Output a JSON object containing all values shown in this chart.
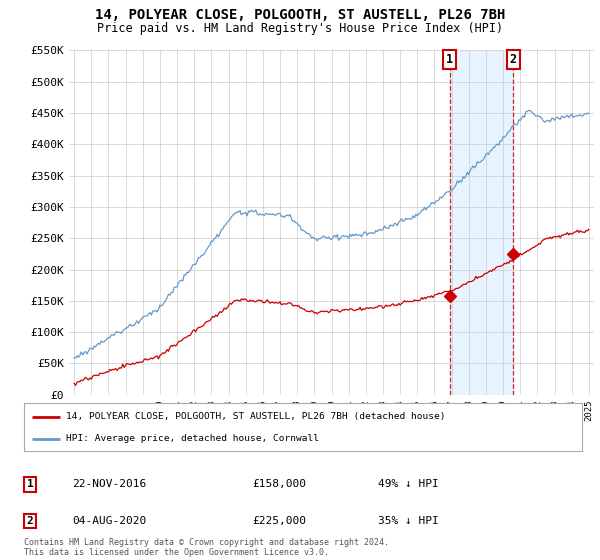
{
  "title": "14, POLYEAR CLOSE, POLGOOTH, ST AUSTELL, PL26 7BH",
  "subtitle": "Price paid vs. HM Land Registry's House Price Index (HPI)",
  "ylim": [
    0,
    550000
  ],
  "yticks": [
    0,
    50000,
    100000,
    150000,
    200000,
    250000,
    300000,
    350000,
    400000,
    450000,
    500000,
    550000
  ],
  "ytick_labels": [
    "£0",
    "£50K",
    "£100K",
    "£150K",
    "£200K",
    "£250K",
    "£300K",
    "£350K",
    "£400K",
    "£450K",
    "£500K",
    "£550K"
  ],
  "xtick_years": [
    1995,
    1996,
    1997,
    1998,
    1999,
    2000,
    2001,
    2002,
    2003,
    2004,
    2005,
    2006,
    2007,
    2008,
    2009,
    2010,
    2011,
    2012,
    2013,
    2014,
    2015,
    2016,
    2017,
    2018,
    2019,
    2020,
    2021,
    2022,
    2023,
    2024,
    2025
  ],
  "legend_entries": [
    "14, POLYEAR CLOSE, POLGOOTH, ST AUSTELL, PL26 7BH (detached house)",
    "HPI: Average price, detached house, Cornwall"
  ],
  "red_color": "#cc0000",
  "blue_color": "#6699cc",
  "blue_fill_color": "#ddeeff",
  "transaction1_date": 2016.9,
  "transaction1_price": 158000,
  "transaction1_text": "22-NOV-2016",
  "transaction1_pct": "49% ↓ HPI",
  "transaction2_date": 2020.6,
  "transaction2_price": 225000,
  "transaction2_text": "04-AUG-2020",
  "transaction2_pct": "35% ↓ HPI",
  "footer": "Contains HM Land Registry data © Crown copyright and database right 2024.\nThis data is licensed under the Open Government Licence v3.0.",
  "background_color": "#ffffff",
  "grid_color": "#cccccc",
  "title_fontsize": 10,
  "subtitle_fontsize": 8.5,
  "tick_fontsize": 8,
  "legend_fontsize": 7.5,
  "annotation_fontsize": 8
}
